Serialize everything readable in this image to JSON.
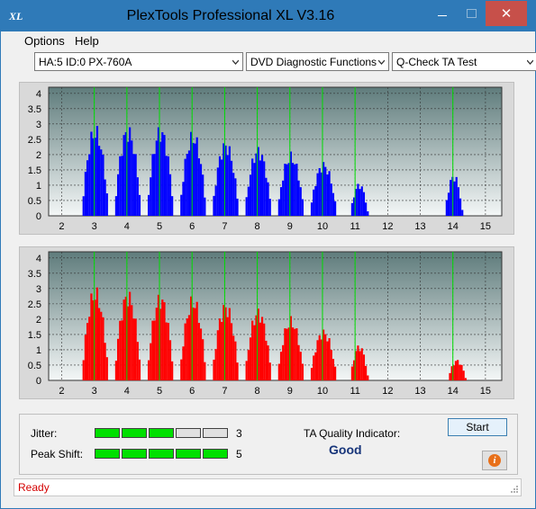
{
  "window": {
    "title": "PlexTools Professional XL V3.16",
    "icon": "xl-app-icon"
  },
  "menu": {
    "options": "Options",
    "help": "Help"
  },
  "toolbar": {
    "drive": "HA:5 ID:0  PX-760A",
    "function": "DVD Diagnostic Functions",
    "test": "Q-Check TA Test"
  },
  "chart_data": [
    {
      "type": "bar",
      "name": "upper",
      "color": "#0000ff",
      "x_ticks": [
        2,
        3,
        4,
        5,
        6,
        7,
        8,
        9,
        10,
        11,
        12,
        13,
        14,
        15
      ],
      "y_ticks": [
        "0",
        "0.5",
        "1",
        "1.5",
        "2",
        "2.5",
        "3",
        "3.5",
        "4"
      ],
      "ylim": [
        0,
        4.2
      ],
      "xlim": [
        1.6,
        15.5
      ],
      "reference_lines": [
        3,
        4,
        5,
        6,
        7,
        8,
        9,
        10,
        11,
        14
      ],
      "peaks": [
        {
          "center": 3.0,
          "height": 3.0
        },
        {
          "center": 4.0,
          "height": 3.0
        },
        {
          "center": 5.0,
          "height": 3.0
        },
        {
          "center": 6.0,
          "height": 2.8
        },
        {
          "center": 7.0,
          "height": 2.5
        },
        {
          "center": 8.0,
          "height": 2.3
        },
        {
          "center": 9.0,
          "height": 2.1
        },
        {
          "center": 10.0,
          "height": 1.8
        },
        {
          "center": 11.1,
          "height": 1.1
        },
        {
          "center": 14.0,
          "height": 1.4
        }
      ]
    },
    {
      "type": "bar",
      "name": "lower",
      "color": "#ff0000",
      "x_ticks": [
        2,
        3,
        4,
        5,
        6,
        7,
        8,
        9,
        10,
        11,
        12,
        13,
        14,
        15
      ],
      "y_ticks": [
        "0",
        "0.5",
        "1",
        "1.5",
        "2",
        "2.5",
        "3",
        "3.5",
        "4"
      ],
      "ylim": [
        0,
        4.2
      ],
      "xlim": [
        1.6,
        15.5
      ],
      "reference_lines": [
        3,
        4,
        5,
        6,
        7,
        8,
        9,
        10,
        11,
        14
      ],
      "peaks": [
        {
          "center": 3.0,
          "height": 3.1
        },
        {
          "center": 4.0,
          "height": 3.0
        },
        {
          "center": 5.0,
          "height": 2.9
        },
        {
          "center": 6.0,
          "height": 2.8
        },
        {
          "center": 7.0,
          "height": 2.6
        },
        {
          "center": 8.0,
          "height": 2.4
        },
        {
          "center": 9.0,
          "height": 2.1
        },
        {
          "center": 10.0,
          "height": 1.7
        },
        {
          "center": 11.1,
          "height": 1.2
        },
        {
          "center": 14.1,
          "height": 0.7
        }
      ]
    }
  ],
  "metrics": {
    "jitter": {
      "label": "Jitter:",
      "value": "3",
      "filled": 3,
      "total": 5
    },
    "peak_shift": {
      "label": "Peak Shift:",
      "value": "5",
      "filled": 5,
      "total": 5
    },
    "filled_color": "#00e000",
    "empty_color": "#e0e0e0"
  },
  "quality": {
    "label": "TA Quality Indicator:",
    "value": "Good"
  },
  "buttons": {
    "start": "Start",
    "info_icon": "info-icon"
  },
  "status": {
    "text": "Ready"
  }
}
